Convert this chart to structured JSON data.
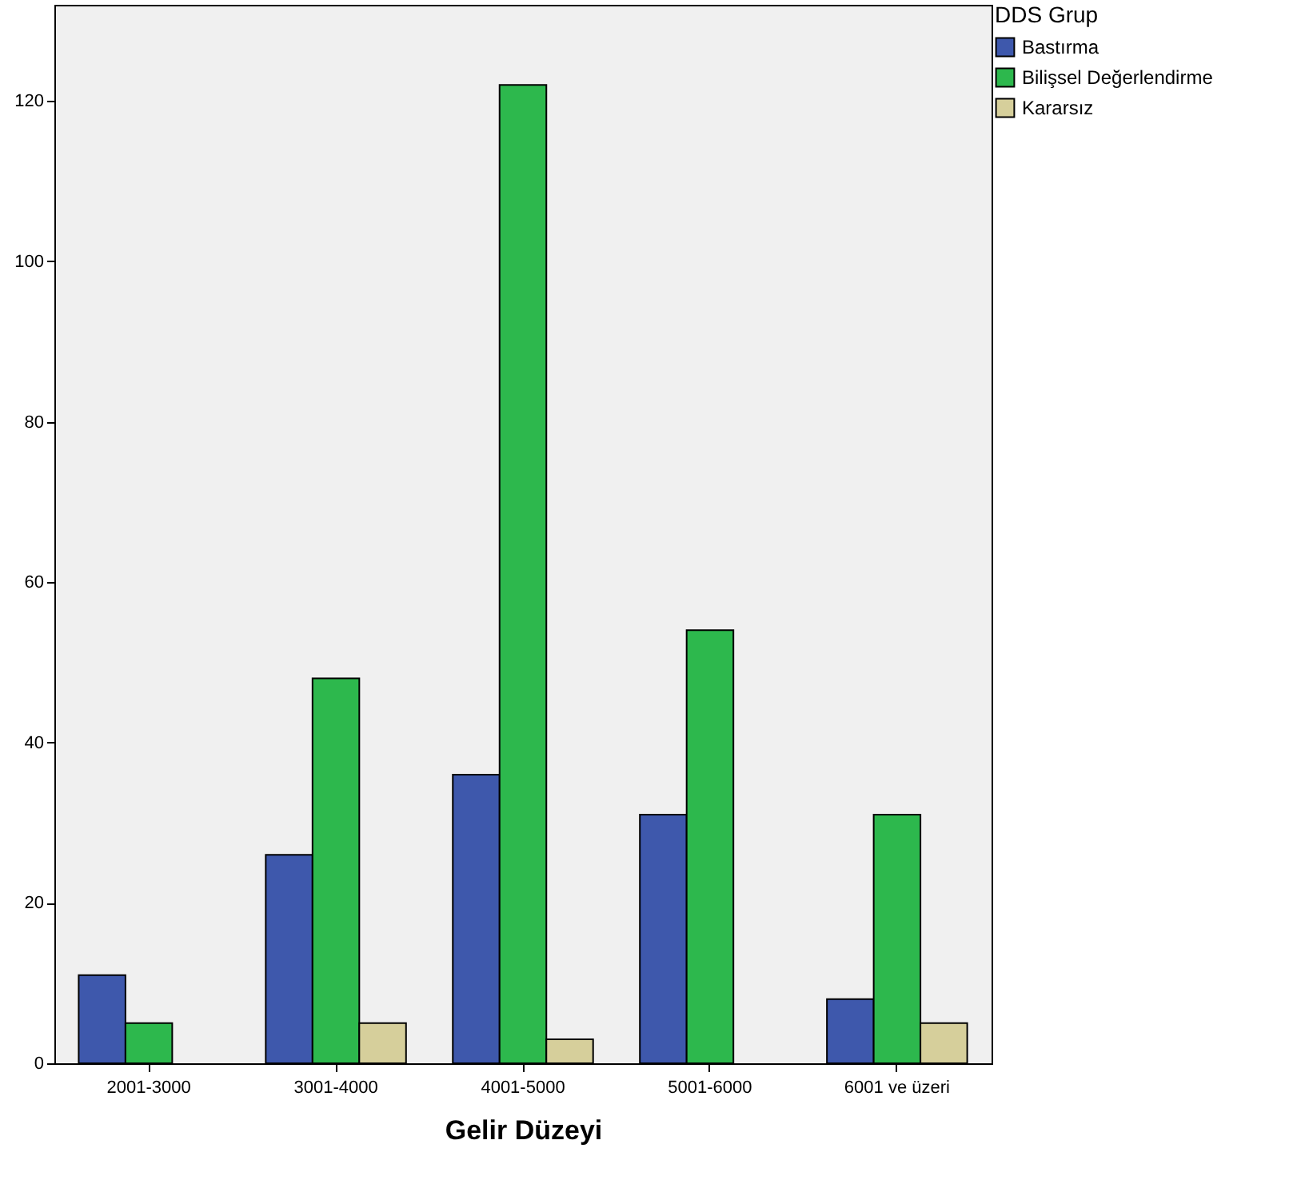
{
  "chart_data": {
    "type": "bar",
    "xlabel": "Gelir Düzeyi",
    "legend_title": "DDS Grup",
    "legend": "top right",
    "grid": false,
    "categories": [
      "2001-3000",
      "3001-4000",
      "4001-5000",
      "5001-6000",
      "6001 ve üzeri"
    ],
    "ylim": [
      0,
      132
    ],
    "yticks": [
      0,
      20,
      40,
      60,
      80,
      100,
      120
    ],
    "series": [
      {
        "name": "Bastırma",
        "color": "#3e58ac",
        "values": [
          11,
          26,
          36,
          31,
          8
        ]
      },
      {
        "name": "Bilişsel Değerlendirme",
        "color": "#2db84d",
        "values": [
          5,
          48,
          122,
          54,
          31
        ]
      },
      {
        "name": "Kararsız",
        "color": "#d6cf9b",
        "values": [
          null,
          5,
          3,
          null,
          5
        ]
      }
    ]
  }
}
